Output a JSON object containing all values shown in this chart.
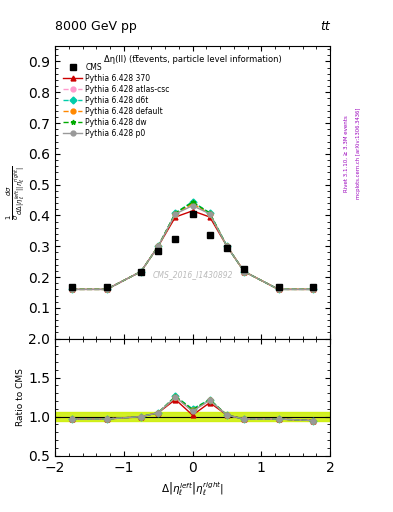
{
  "title_top": "8000 GeV pp",
  "title_right": "tt",
  "annotation": "Δη(ll) (tt̅events, particle level information)",
  "watermark": "CMS_2016_I1430892",
  "right_label": "Rivet 3.1.10, ≥ 3.3M events",
  "right_label2": "mcplots.cern.ch [arXiv:1306.3436]",
  "x_data": [
    -1.75,
    -1.25,
    -0.75,
    -0.5,
    -0.25,
    0.0,
    0.25,
    0.5,
    0.75,
    1.25,
    1.75
  ],
  "cms_y": [
    0.168,
    0.168,
    0.218,
    0.285,
    0.325,
    0.405,
    0.335,
    0.295,
    0.225,
    0.168,
    0.168
  ],
  "py370_y": [
    0.16,
    0.16,
    0.218,
    0.3,
    0.395,
    0.415,
    0.395,
    0.3,
    0.218,
    0.16,
    0.16
  ],
  "py_atlas_y": [
    0.16,
    0.16,
    0.218,
    0.3,
    0.405,
    0.44,
    0.405,
    0.3,
    0.218,
    0.16,
    0.16
  ],
  "py_d6t_y": [
    0.16,
    0.16,
    0.218,
    0.3,
    0.408,
    0.445,
    0.408,
    0.3,
    0.218,
    0.16,
    0.16
  ],
  "py_default_y": [
    0.16,
    0.16,
    0.218,
    0.3,
    0.405,
    0.438,
    0.405,
    0.3,
    0.218,
    0.16,
    0.16
  ],
  "py_dw_y": [
    0.16,
    0.16,
    0.218,
    0.3,
    0.408,
    0.443,
    0.408,
    0.3,
    0.218,
    0.16,
    0.16
  ],
  "py_p0_y": [
    0.16,
    0.16,
    0.218,
    0.3,
    0.405,
    0.432,
    0.405,
    0.3,
    0.218,
    0.16,
    0.16
  ],
  "ratio_py370": [
    0.97,
    0.97,
    1.0,
    1.05,
    1.22,
    1.02,
    1.18,
    1.02,
    0.97,
    0.97,
    0.95
  ],
  "ratio_atlas": [
    0.97,
    0.97,
    1.0,
    1.05,
    1.25,
    1.09,
    1.21,
    1.02,
    0.97,
    0.97,
    0.95
  ],
  "ratio_d6t": [
    0.97,
    0.97,
    1.0,
    1.05,
    1.26,
    1.1,
    1.22,
    1.02,
    0.97,
    0.97,
    0.95
  ],
  "ratio_default": [
    0.97,
    0.97,
    1.0,
    1.05,
    1.25,
    1.08,
    1.21,
    1.02,
    0.97,
    0.97,
    0.95
  ],
  "ratio_dw": [
    0.97,
    0.97,
    1.0,
    1.05,
    1.26,
    1.09,
    1.22,
    1.02,
    0.97,
    0.97,
    0.95
  ],
  "ratio_p0": [
    0.97,
    0.97,
    1.0,
    1.05,
    1.25,
    1.07,
    1.21,
    1.02,
    0.97,
    0.97,
    0.95
  ],
  "color_cms": "#000000",
  "color_370": "#cc0000",
  "color_atlas": "#ff99cc",
  "color_d6t": "#00ccaa",
  "color_default": "#ff8800",
  "color_dw": "#00aa00",
  "color_p0": "#999999",
  "ylim_main": [
    0.0,
    0.95
  ],
  "ylim_ratio": [
    0.5,
    2.0
  ],
  "xlim": [
    -2.0,
    2.0
  ],
  "yticks_main": [
    0.1,
    0.2,
    0.3,
    0.4,
    0.5,
    0.6,
    0.7,
    0.8,
    0.9
  ],
  "yticks_ratio": [
    0.5,
    1.0,
    1.5,
    2.0
  ],
  "xticks": [
    -2,
    -1,
    0,
    1,
    2
  ]
}
